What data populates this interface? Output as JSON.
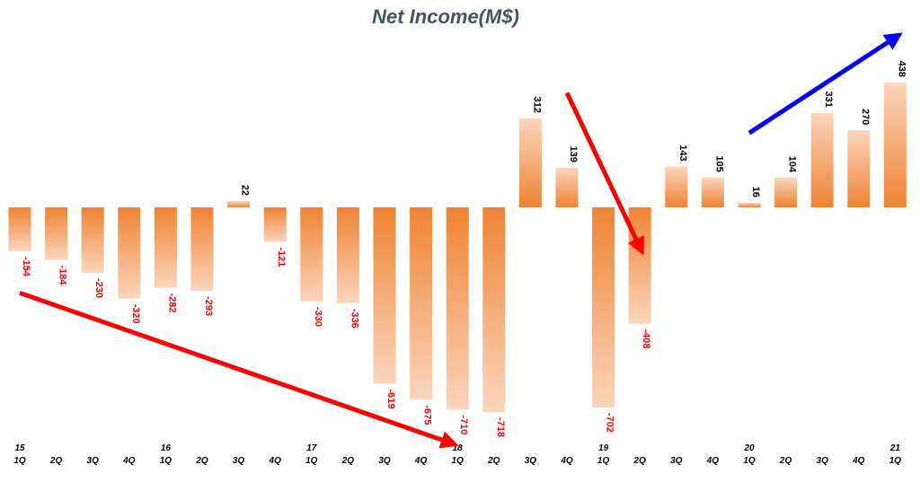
{
  "chart_data": {
    "type": "bar",
    "title": "Net Income(M$)",
    "xlabel": "",
    "ylabel": "",
    "ylim": [
      -718,
      438
    ],
    "grid": false,
    "categories": [
      "15 1Q",
      "2Q",
      "3Q",
      "4Q",
      "16 1Q",
      "2Q",
      "3Q",
      "4Q",
      "17 1Q",
      "2Q",
      "3Q",
      "4Q",
      "18 1Q",
      "2Q",
      "3Q",
      "4Q",
      "19 1Q",
      "2Q",
      "3Q",
      "4Q",
      "20 1Q",
      "2Q",
      "3Q",
      "4Q",
      "21 1Q"
    ],
    "tick_years": [
      "15",
      "",
      "",
      "",
      "16",
      "",
      "",
      "",
      "17",
      "",
      "",
      "",
      "18",
      "",
      "",
      "",
      "19",
      "",
      "",
      "",
      "20",
      "",
      "",
      "",
      "21"
    ],
    "tick_quarters": [
      "1Q",
      "2Q",
      "3Q",
      "4Q",
      "1Q",
      "2Q",
      "3Q",
      "4Q",
      "1Q",
      "2Q",
      "3Q",
      "4Q",
      "1Q",
      "2Q",
      "3Q",
      "4Q",
      "1Q",
      "2Q",
      "3Q",
      "4Q",
      "1Q",
      "2Q",
      "3Q",
      "4Q",
      "1Q"
    ],
    "values": [
      -154,
      -184,
      -230,
      -320,
      -282,
      -293,
      22,
      -121,
      -330,
      -336,
      -619,
      -675,
      -710,
      -718,
      312,
      139,
      -702,
      -408,
      143,
      105,
      16,
      104,
      331,
      270,
      438
    ],
    "colors": {
      "bar_light": "#fbd5bc",
      "bar_dark": "#ef8332",
      "positive_label": "#000000",
      "negative_label": "#ff0000",
      "arrow_red": "#ff0000",
      "arrow_blue": "#0000ff"
    },
    "annotations": [
      {
        "name": "downtrend-arrow-2015-2018",
        "color": "red",
        "from": {
          "index": 0,
          "value": -300
        },
        "to": {
          "index": 11.8,
          "value": -826
        }
      },
      {
        "name": "downtrend-arrow-2018-2019",
        "color": "red",
        "from": {
          "index": 15,
          "value": 402
        },
        "to": {
          "index": 17,
          "value": -140
        }
      },
      {
        "name": "uptrend-arrow-2020-2021",
        "color": "blue",
        "from": {
          "index": 20,
          "value": 261
        },
        "to": {
          "index": 24,
          "value": 596
        }
      }
    ]
  }
}
